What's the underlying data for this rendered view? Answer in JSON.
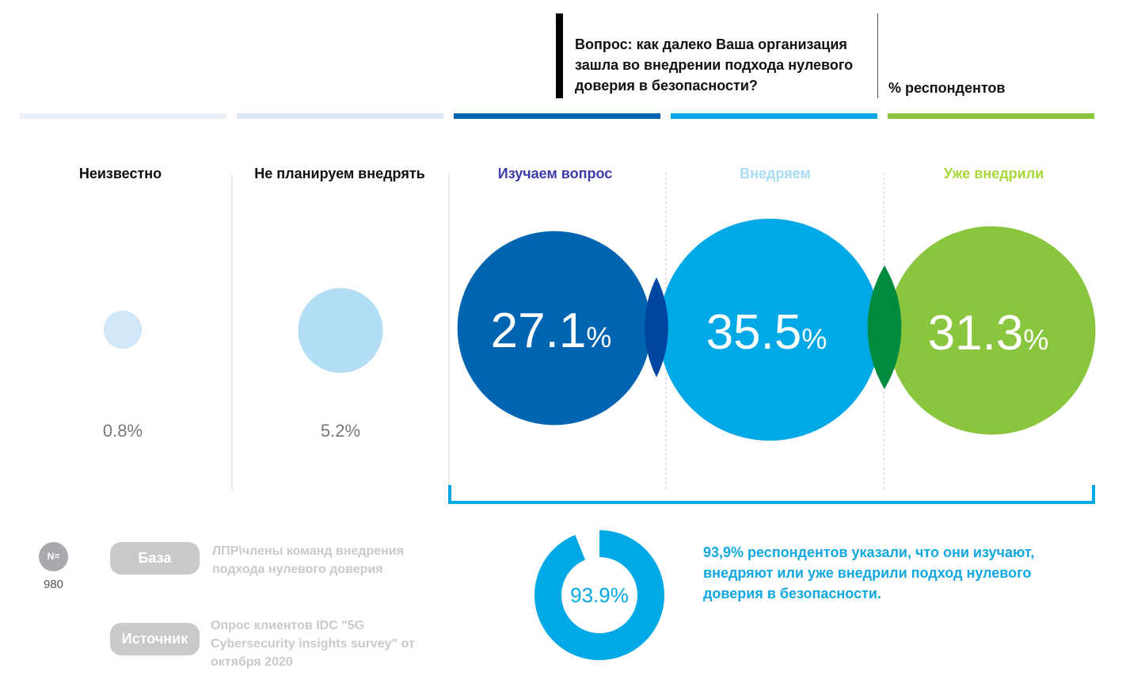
{
  "question": "Вопрос: как далеко Ваша организация зашла во внедрении подхода нулевого доверия в безопасности?",
  "unit_label": "% респондентов",
  "chart_data": {
    "type": "bubble",
    "title": "Вопрос: как далеко Ваша организация зашла во внедрении подхода нулевого доверия в безопасности?",
    "ylabel": "% респондентов",
    "categories": [
      "Неизвестно",
      "Не планируем внедрять",
      "Изучаем вопрос",
      "Внедряем",
      "Уже внедрили"
    ],
    "values": [
      0.8,
      5.2,
      27.1,
      35.5,
      31.3
    ],
    "value_labels": [
      "0.8%",
      "5.2%",
      "27.1",
      "35.5",
      "31.3"
    ],
    "percent_sign": "%",
    "colors": [
      "#cfe7f8",
      "#b3def6",
      "#0064b0",
      "#00a9e6",
      "#8ac53e"
    ],
    "label_colors": [
      "#111111",
      "#111111",
      "#3c3caa",
      "#a6dcf2",
      "#a6d83a"
    ],
    "total": {
      "value": 93.9,
      "label": "93.9%",
      "color": "#00a9e6",
      "text": "93,9% респондентов указали, что они изучают, внедряют или уже внедрили подход нулевого доверия в безопасности."
    }
  },
  "footer": {
    "n_label": "N=",
    "n_value": "980",
    "base_label": "База",
    "base_text": "ЛПР\\члены команд внедрения подхода нулевого доверия",
    "source_label": "Источник",
    "source_text": "Опрос клиентов IDC \"5G Cybersecurity insights survey\" от октября 2020"
  }
}
